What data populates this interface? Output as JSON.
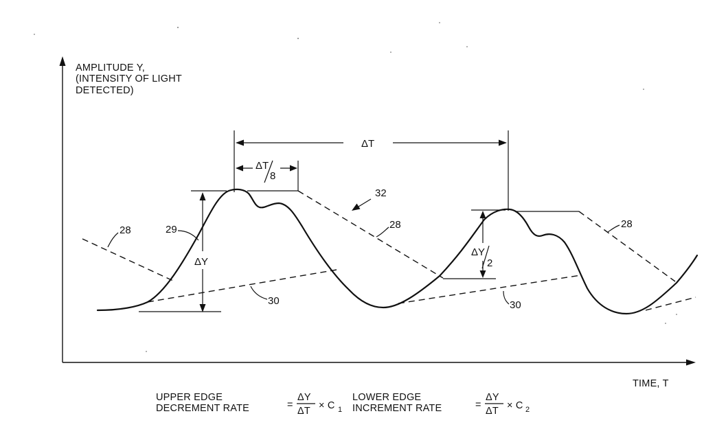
{
  "axes": {
    "y_label": [
      "AMPLITUDE Y,",
      "(INTENSITY OF LIGHT",
      "DETECTED)"
    ],
    "x_label": "TIME, T"
  },
  "references": {
    "upper_edge_left": "28",
    "upper_edge_mid": "28",
    "upper_edge_right": "28",
    "signal_curve": "29",
    "lower_edge_left": "30",
    "lower_edge_right": "30",
    "envelope_assembly": "32"
  },
  "dimensions": {
    "delta_t": "ΔT",
    "delta_t_eighth_num": "ΔT",
    "delta_t_eighth_den": "8",
    "delta_y": "ΔY",
    "delta_y_half_num": "ΔY",
    "delta_y_half_den": "2"
  },
  "formulas": {
    "upper": {
      "label_line1": "UPPER EDGE",
      "label_line2": "DECREMENT RATE",
      "equals": "=",
      "numerator": "ΔY",
      "denominator": "ΔT",
      "multiplier": "× C",
      "subscript": "1"
    },
    "lower": {
      "label_line1": "LOWER EDGE",
      "label_line2": "INCREMENT RATE",
      "equals": "=",
      "numerator": "ΔY",
      "denominator": "ΔT",
      "multiplier": "× C",
      "subscript": "2"
    }
  }
}
